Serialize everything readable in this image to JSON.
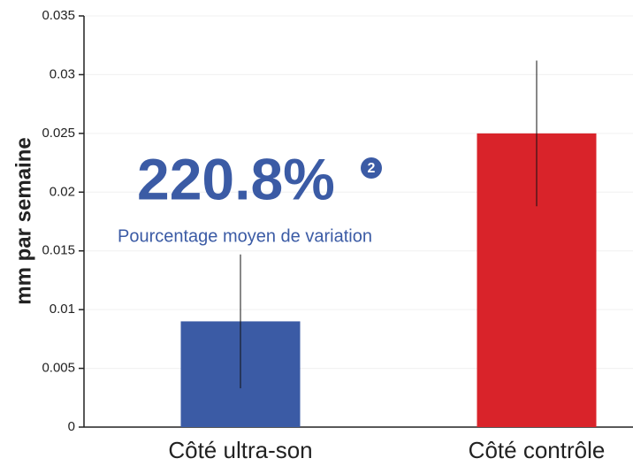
{
  "chart_data": {
    "type": "bar",
    "categories": [
      "Côté ultra-son",
      "Côté contrôle"
    ],
    "values": [
      0.009,
      0.025
    ],
    "errors": [
      0.0057,
      0.0062
    ],
    "colors": [
      "#3b5ba5",
      "#d9232a"
    ],
    "ylabel": "mm par semaine",
    "ylim": [
      0,
      0.035
    ],
    "yticks": [
      0,
      0.005,
      0.01,
      0.015,
      0.02,
      0.025,
      0.03,
      0.035
    ],
    "grid": true,
    "annotations": {
      "headline": "220.8%",
      "note_marker": "2",
      "caption": "Pourcentage moyen de variation"
    }
  }
}
